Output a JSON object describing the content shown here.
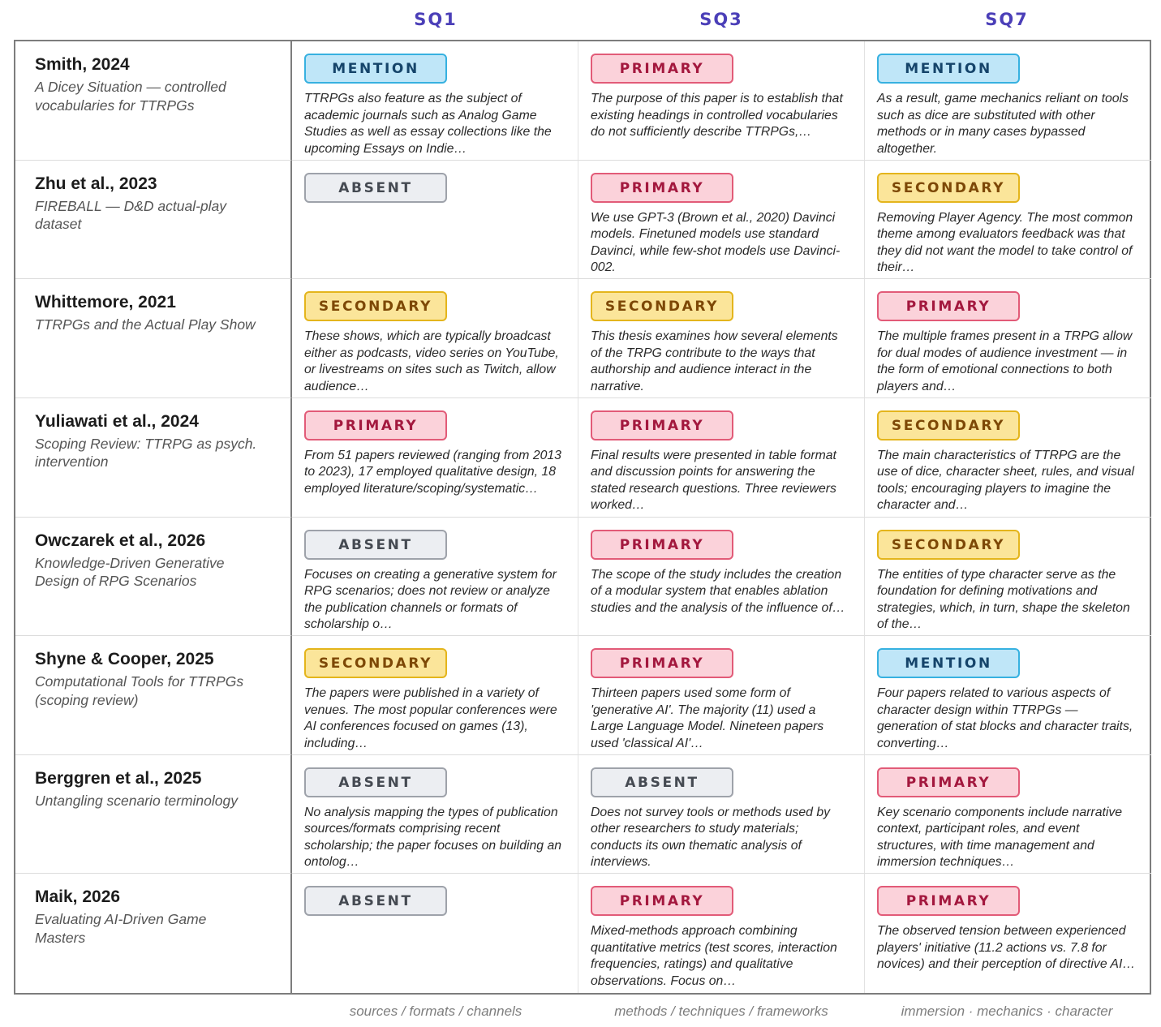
{
  "columns": [
    {
      "id": "SQ1",
      "footer": "sources / formats / channels"
    },
    {
      "id": "SQ3",
      "footer": "methods / techniques / frameworks"
    },
    {
      "id": "SQ7",
      "footer": "immersion · mechanics · character"
    }
  ],
  "colors": {
    "mention": "#bfe6f8",
    "primary": "#fbd2da",
    "secondary": "#fbe59a",
    "absent": "#eceef2",
    "header": "#4b3fb8"
  },
  "rows": [
    {
      "title": "Smith, 2024",
      "subtitle": "A Dicey Situation — controlled vocabularies for TTRPGs",
      "cells": [
        {
          "level": "MENTION",
          "quote": "TTRPGs also feature as the subject of academic journals such as Analog Game Studies as well as essay collections like the upcoming Essays on Indie…"
        },
        {
          "level": "PRIMARY",
          "quote": "The purpose of this paper is to establish that existing headings in controlled vocabularies do not sufficiently describe TTRPGs,…"
        },
        {
          "level": "MENTION",
          "quote": "As a result, game mechanics reliant on tools such as dice are substituted with other methods or in many cases bypassed altogether."
        }
      ]
    },
    {
      "title": "Zhu et al., 2023",
      "subtitle": "FIREBALL — D&D actual-play dataset",
      "cells": [
        {
          "level": "ABSENT",
          "quote": ""
        },
        {
          "level": "PRIMARY",
          "quote": "We use GPT-3 (Brown et al., 2020) Davinci models. Finetuned models use standard Davinci, while few-shot models use Davinci-002."
        },
        {
          "level": "SECONDARY",
          "quote": "Removing Player Agency. The most common theme among evaluators feedback was that they did not want the model to take control of their…"
        }
      ]
    },
    {
      "title": "Whittemore, 2021",
      "subtitle": "TTRPGs and the Actual Play Show",
      "cells": [
        {
          "level": "SECONDARY",
          "quote": "These shows, which are typically broadcast either as podcasts, video series on YouTube, or livestreams on sites such as Twitch, allow audience…"
        },
        {
          "level": "SECONDARY",
          "quote": "This thesis examines how several elements of the TRPG contribute to the ways that authorship and audience interact in the narrative."
        },
        {
          "level": "PRIMARY",
          "quote": "The multiple frames present in a TRPG allow for dual modes of audience investment — in the form of emotional connections to both players and…"
        }
      ]
    },
    {
      "title": "Yuliawati et al., 2024",
      "subtitle": "Scoping Review: TTRPG as psych. intervention",
      "cells": [
        {
          "level": "PRIMARY",
          "quote": "From 51 papers reviewed (ranging from 2013 to 2023), 17 employed qualitative design, 18 employed literature/scoping/systematic…"
        },
        {
          "level": "PRIMARY",
          "quote": "Final results were presented in table format and discussion points for answering the stated research questions. Three reviewers worked…"
        },
        {
          "level": "SECONDARY",
          "quote": "The main characteristics of TTRPG are the use of dice, character sheet, rules, and visual tools; encouraging players to imagine the character and…"
        }
      ]
    },
    {
      "title": "Owczarek et al., 2026",
      "subtitle": "Knowledge-Driven Generative Design of RPG Scenarios",
      "cells": [
        {
          "level": "ABSENT",
          "quote": "Focuses on creating a generative system for RPG scenarios; does not review or analyze the publication channels or formats of scholarship o…"
        },
        {
          "level": "PRIMARY",
          "quote": "The scope of the study includes the creation of a modular system that enables ablation studies and the analysis of the influence of…"
        },
        {
          "level": "SECONDARY",
          "quote": "The entities of type character serve as the foundation for defining motivations and strategies, which, in turn, shape the skeleton of the…"
        }
      ]
    },
    {
      "title": "Shyne & Cooper, 2025",
      "subtitle": "Computational Tools for TTRPGs (scoping review)",
      "cells": [
        {
          "level": "SECONDARY",
          "quote": "The papers were published in a variety of venues. The most popular conferences were AI conferences focused on games (13), including…"
        },
        {
          "level": "PRIMARY",
          "quote": "Thirteen papers used some form of 'generative AI'. The majority (11) used a Large Language Model. Nineteen papers used 'classical AI'…"
        },
        {
          "level": "MENTION",
          "quote": "Four papers related to various aspects of character design within TTRPGs — generation of stat blocks and character traits, converting…"
        }
      ]
    },
    {
      "title": "Berggren et al., 2025",
      "subtitle": "Untangling scenario terminology",
      "cells": [
        {
          "level": "ABSENT",
          "quote": "No analysis mapping the types of publication sources/formats comprising recent scholarship; the paper focuses on building an ontolog…"
        },
        {
          "level": "ABSENT",
          "quote": "Does not survey tools or methods used by other researchers to study materials; conducts its own thematic analysis of interviews."
        },
        {
          "level": "PRIMARY",
          "quote": "Key scenario components include narrative context, participant roles, and event structures, with time management and immersion techniques…"
        }
      ]
    },
    {
      "title": "Maik, 2026",
      "subtitle": "Evaluating AI-Driven Game Masters",
      "cells": [
        {
          "level": "ABSENT",
          "quote": ""
        },
        {
          "level": "PRIMARY",
          "quote": "Mixed-methods approach combining quantitative metrics (test scores, interaction frequencies, ratings) and qualitative observations. Focus on…"
        },
        {
          "level": "PRIMARY",
          "quote": "The observed tension between experienced players' initiative (11.2 actions vs. 7.8 for novices) and their perception of directive AI…"
        }
      ]
    }
  ]
}
